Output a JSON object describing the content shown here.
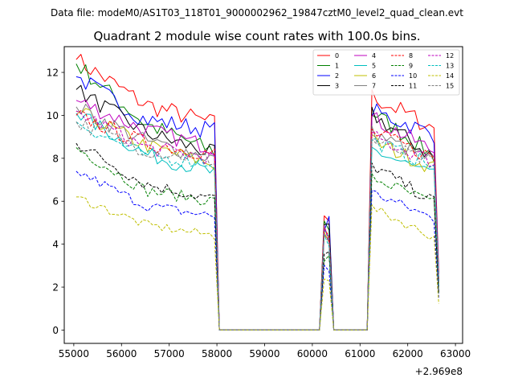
{
  "figure": {
    "suptitle": "Data file: modeM0/AS1T03_118T01_9000002962_19847cztM0_level2_quad_clean.evt"
  },
  "chart_data": {
    "type": "line",
    "title": "Quadrant 2 module wise count rates with 100.0s bins.",
    "xlabel": "",
    "ylabel": "",
    "x_offset_label": "+2.969e8",
    "xlim": [
      54800,
      63150
    ],
    "ylim": [
      -0.62,
      13.2
    ],
    "x_ticks": [
      55000,
      56000,
      57000,
      58000,
      59000,
      60000,
      61000,
      62000,
      63000
    ],
    "x_tick_labels": [
      "55000",
      "56000",
      "57000",
      "58000",
      "59000",
      "60000",
      "61000",
      "62000",
      "63000"
    ],
    "y_ticks": [
      0,
      2,
      4,
      6,
      8,
      10,
      12
    ],
    "y_tick_labels": [
      "0",
      "2",
      "4",
      "6",
      "8",
      "10",
      "12"
    ],
    "grid": false,
    "legend_position": "top-right",
    "legend_columns": 4,
    "segments": [
      {
        "start": 55050,
        "end": 58050,
        "level": 1.0
      },
      {
        "start": 58050,
        "end": 60150,
        "level": 0.0
      },
      {
        "start": 60150,
        "end": 60250,
        "level": 0.45
      },
      {
        "start": 60250,
        "end": 60350,
        "level": 0.44
      },
      {
        "start": 60350,
        "end": 60450,
        "level": 0.0
      },
      {
        "start": 60450,
        "end": 61150,
        "level": 0.0
      },
      {
        "start": 61150,
        "end": 62650,
        "level": 1.0
      }
    ],
    "series": [
      {
        "name": "0",
        "color": "#ff0000",
        "dashed": false,
        "start": 12.6,
        "mid": 10.5,
        "end": 9.6,
        "second_max": 11.0
      },
      {
        "name": "1",
        "color": "#008000",
        "dashed": false,
        "start": 12.4,
        "mid": 9.6,
        "end": 8.3,
        "second_max": 10.3
      },
      {
        "name": "2",
        "color": "#0000ff",
        "dashed": false,
        "start": 11.8,
        "mid": 9.8,
        "end": 9.3,
        "second_max": 10.3
      },
      {
        "name": "3",
        "color": "#000000",
        "dashed": false,
        "start": 11.2,
        "mid": 9.2,
        "end": 8.2,
        "second_max": 10.2
      },
      {
        "name": "4",
        "color": "#bf00bf",
        "dashed": false,
        "start": 10.7,
        "mid": 9.3,
        "end": 8.5,
        "second_max": 10.0
      },
      {
        "name": "5",
        "color": "#00bfbf",
        "dashed": false,
        "start": 10.1,
        "mid": 8.2,
        "end": 7.3,
        "second_max": 8.5
      },
      {
        "name": "6",
        "color": "#bfbf00",
        "dashed": false,
        "start": 10.2,
        "mid": 8.6,
        "end": 7.7,
        "second_max": 8.9
      },
      {
        "name": "7",
        "color": "#808080",
        "dashed": false,
        "start": 10.4,
        "mid": 8.8,
        "end": 8.0,
        "second_max": 9.3
      },
      {
        "name": "8",
        "color": "#ff0000",
        "dashed": true,
        "start": 10.0,
        "mid": 8.7,
        "end": 8.2,
        "second_max": 9.3
      },
      {
        "name": "9",
        "color": "#008000",
        "dashed": true,
        "start": 8.5,
        "mid": 6.5,
        "end": 6.0,
        "second_max": 7.2
      },
      {
        "name": "10",
        "color": "#0000ff",
        "dashed": true,
        "start": 7.4,
        "mid": 5.8,
        "end": 5.3,
        "second_max": 6.5
      },
      {
        "name": "11",
        "color": "#000000",
        "dashed": true,
        "start": 8.7,
        "mid": 6.8,
        "end": 6.1,
        "second_max": 7.8
      },
      {
        "name": "12",
        "color": "#bf00bf",
        "dashed": true,
        "start": 10.2,
        "mid": 8.5,
        "end": 8.0,
        "second_max": 9.1
      },
      {
        "name": "13",
        "color": "#00bfbf",
        "dashed": true,
        "start": 9.7,
        "mid": 8.1,
        "end": 7.8,
        "second_max": 8.9
      },
      {
        "name": "14",
        "color": "#bfbf00",
        "dashed": true,
        "start": 6.2,
        "mid": 4.9,
        "end": 4.4,
        "second_max": 5.8
      },
      {
        "name": "15",
        "color": "#808080",
        "dashed": true,
        "start": 9.7,
        "mid": 8.4,
        "end": 7.9,
        "second_max": 8.9
      }
    ]
  }
}
